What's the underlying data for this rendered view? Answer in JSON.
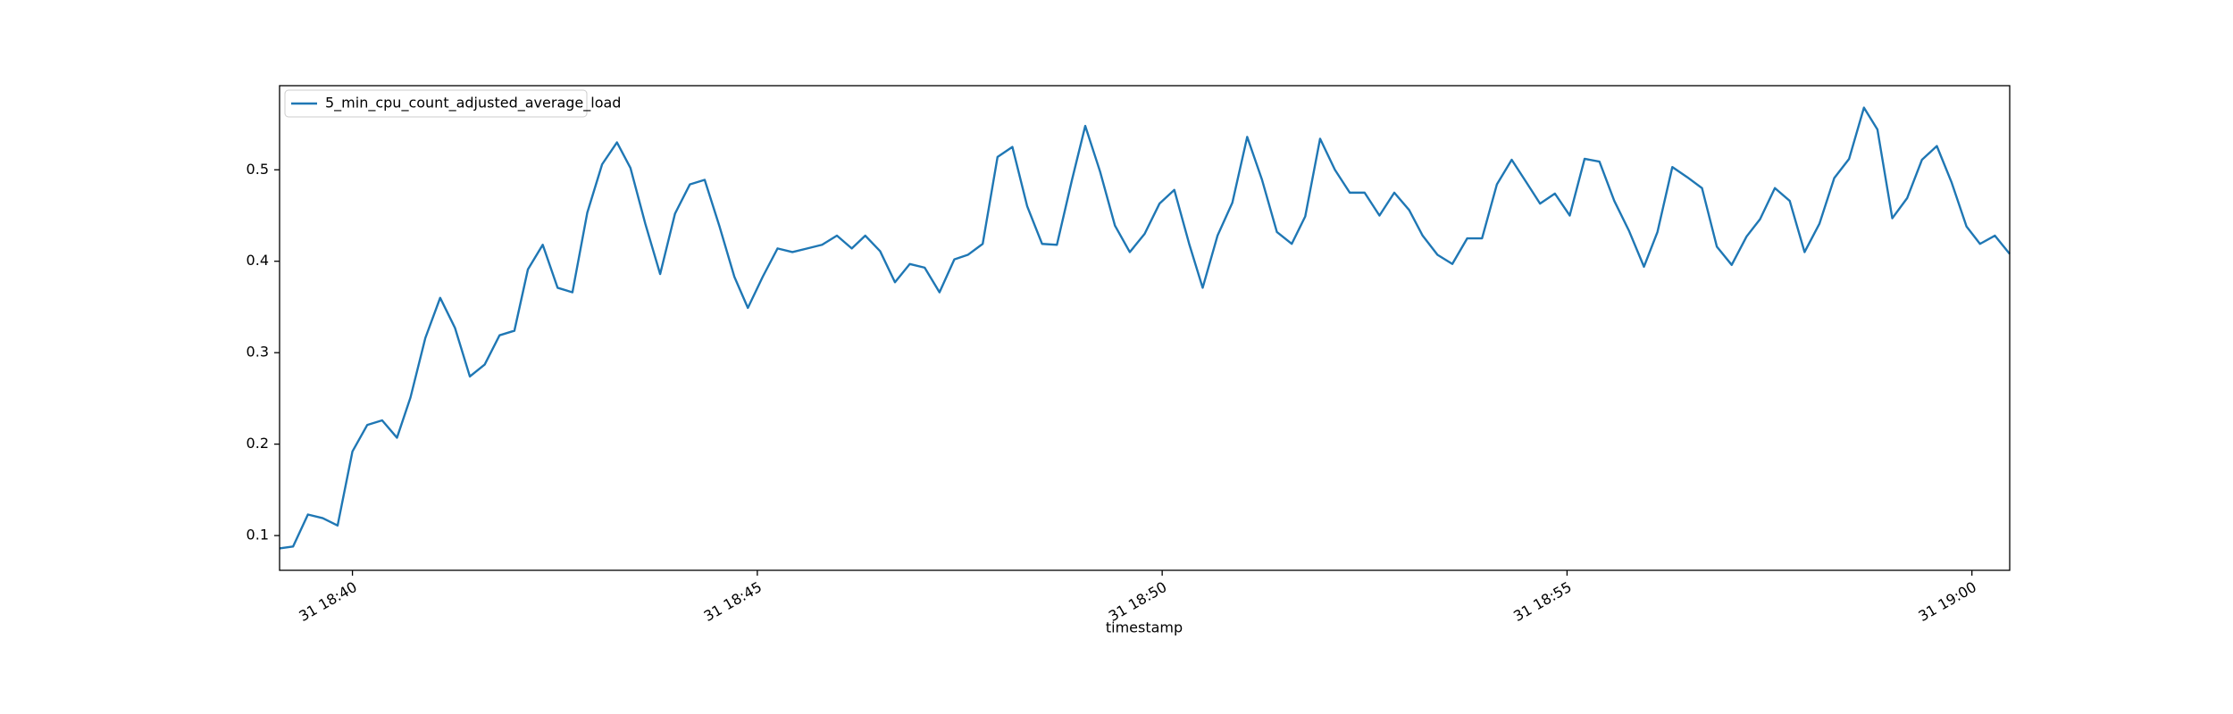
{
  "chart_data": {
    "type": "line",
    "xlabel": "timestamp",
    "x": [
      "31 18:39:06",
      "31 18:39:16",
      "31 18:39:27",
      "31 18:39:38",
      "31 18:39:49",
      "31 18:40:00",
      "31 18:40:11",
      "31 18:40:22",
      "31 18:40:33",
      "31 18:40:43",
      "31 18:40:54",
      "31 18:41:05",
      "31 18:41:16",
      "31 18:41:27",
      "31 18:41:38",
      "31 18:41:49",
      "31 18:42:00",
      "31 18:42:10",
      "31 18:42:21",
      "31 18:42:32",
      "31 18:42:43",
      "31 18:42:54",
      "31 18:43:05",
      "31 18:43:16",
      "31 18:43:26",
      "31 18:43:37",
      "31 18:43:48",
      "31 18:43:59",
      "31 18:44:10",
      "31 18:44:21",
      "31 18:44:32",
      "31 18:44:43",
      "31 18:44:53",
      "31 18:45:04",
      "31 18:45:15",
      "31 18:45:26",
      "31 18:45:37",
      "31 18:45:48",
      "31 18:45:59",
      "31 18:46:10",
      "31 18:46:20",
      "31 18:46:31",
      "31 18:46:42",
      "31 18:46:53",
      "31 18:47:04",
      "31 18:47:15",
      "31 18:47:26",
      "31 18:47:36",
      "31 18:47:47",
      "31 18:47:58",
      "31 18:48:09",
      "31 18:48:20",
      "31 18:48:31",
      "31 18:48:42",
      "31 18:48:53",
      "31 18:49:03",
      "31 18:49:14",
      "31 18:49:25",
      "31 18:49:36",
      "31 18:49:47",
      "31 18:49:58",
      "31 18:50:09",
      "31 18:50:20",
      "31 18:50:30",
      "31 18:50:41",
      "31 18:50:52",
      "31 18:51:03",
      "31 18:51:14",
      "31 18:51:25",
      "31 18:51:36",
      "31 18:51:46",
      "31 18:51:57",
      "31 18:52:08",
      "31 18:52:19",
      "31 18:52:30",
      "31 18:52:41",
      "31 18:52:52",
      "31 18:53:03",
      "31 18:53:13",
      "31 18:53:24",
      "31 18:53:35",
      "31 18:53:46",
      "31 18:53:57",
      "31 18:54:08",
      "31 18:54:19",
      "31 18:54:30",
      "31 18:54:40",
      "31 18:54:51",
      "31 18:55:02",
      "31 18:55:13",
      "31 18:55:24",
      "31 18:55:35",
      "31 18:55:46",
      "31 18:55:57",
      "31 18:56:07",
      "31 18:56:18",
      "31 18:56:29",
      "31 18:56:40",
      "31 18:56:51",
      "31 18:57:02",
      "31 18:57:13",
      "31 18:57:23",
      "31 18:57:34",
      "31 18:57:45",
      "31 18:57:56",
      "31 18:58:07",
      "31 18:58:18",
      "31 18:58:29",
      "31 18:58:40",
      "31 18:58:50",
      "31 18:59:01",
      "31 18:59:12",
      "31 18:59:23",
      "31 18:59:34",
      "31 18:59:45",
      "31 18:59:56",
      "31 19:00:06",
      "31 19:00:17",
      "31 19:00:28"
    ],
    "series": [
      {
        "name": "5_min_cpu_count_adjusted_average_load",
        "color": "#1f77b4",
        "values": [
          0.086,
          0.088,
          0.123,
          0.119,
          0.111,
          0.192,
          0.221,
          0.226,
          0.207,
          0.251,
          0.316,
          0.36,
          0.327,
          0.274,
          0.287,
          0.319,
          0.324,
          0.391,
          0.418,
          0.371,
          0.366,
          0.453,
          0.506,
          0.53,
          0.502,
          0.441,
          0.386,
          0.452,
          0.484,
          0.489,
          0.438,
          0.383,
          0.349,
          0.383,
          0.414,
          0.41,
          0.414,
          0.418,
          0.428,
          0.414,
          0.428,
          0.411,
          0.377,
          0.397,
          0.393,
          0.366,
          0.402,
          0.407,
          0.419,
          0.514,
          0.525,
          0.46,
          0.419,
          0.418,
          0.488,
          0.548,
          0.498,
          0.439,
          0.41,
          0.43,
          0.463,
          0.478,
          0.419,
          0.371,
          0.428,
          0.464,
          0.536,
          0.489,
          0.432,
          0.419,
          0.449,
          0.534,
          0.5,
          0.475,
          0.475,
          0.45,
          0.475,
          0.456,
          0.428,
          0.407,
          0.397,
          0.425,
          0.425,
          0.484,
          0.511,
          0.486,
          0.463,
          0.474,
          0.45,
          0.512,
          0.509,
          0.466,
          0.433,
          0.394,
          0.432,
          0.503,
          0.492,
          0.48,
          0.416,
          0.396,
          0.427,
          0.446,
          0.48,
          0.466,
          0.41,
          0.441,
          0.491,
          0.512,
          0.568,
          0.544,
          0.447,
          0.469,
          0.511,
          0.526,
          0.486,
          0.438,
          0.419,
          0.428,
          0.408
        ]
      }
    ],
    "xlim": [
      "31 18:39:06",
      "31 19:00:28"
    ],
    "xticks": [
      {
        "value": "31 18:40:00",
        "label": "31 18:40"
      },
      {
        "value": "31 18:45:00",
        "label": "31 18:45"
      },
      {
        "value": "31 18:50:00",
        "label": "31 18:50"
      },
      {
        "value": "31 18:55:00",
        "label": "31 18:55"
      },
      {
        "value": "31 19:00:00",
        "label": "31 19:00"
      }
    ],
    "ylim": [
      0.062,
      0.592
    ],
    "yticks": [
      0.1,
      0.2,
      0.3,
      0.4,
      0.5
    ],
    "grid": false,
    "legend": "upper left"
  }
}
